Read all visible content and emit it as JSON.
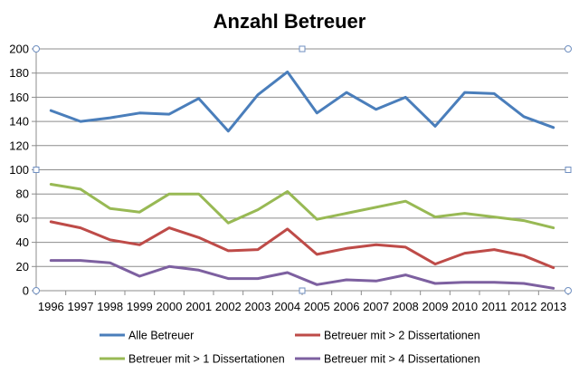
{
  "chart_data": {
    "type": "line",
    "title": "Anzahl Betreuer",
    "xlabel": "",
    "ylabel": "",
    "ylim": [
      0,
      200
    ],
    "yticks": [
      0,
      20,
      40,
      60,
      80,
      100,
      120,
      140,
      160,
      180,
      200
    ],
    "grid": true,
    "legend_position": "bottom",
    "categories": [
      "1996",
      "1997",
      "1998",
      "1999",
      "2000",
      "2001",
      "2002",
      "2003",
      "2004",
      "2005",
      "2006",
      "2007",
      "2008",
      "2009",
      "2010",
      "2011",
      "2012",
      "2013"
    ],
    "series": [
      {
        "name": "Alle Betreuer",
        "color": "#4a7ebb",
        "values": [
          149,
          140,
          143,
          147,
          146,
          159,
          132,
          162,
          181,
          147,
          164,
          150,
          160,
          136,
          164,
          163,
          144,
          135
        ]
      },
      {
        "name": "Betreuer mit > 2 Dissertationen",
        "color": "#be4b48",
        "values": [
          57,
          52,
          42,
          38,
          52,
          44,
          33,
          34,
          51,
          30,
          35,
          38,
          36,
          22,
          31,
          34,
          29,
          19
        ]
      },
      {
        "name": "Betreuer mit > 1 Dissertationen",
        "color": "#98b954",
        "values": [
          88,
          84,
          68,
          65,
          80,
          80,
          56,
          67,
          82,
          59,
          null,
          null,
          74,
          61,
          64,
          61,
          58,
          52
        ]
      },
      {
        "name": "Betreuer mit > 4 Dissertationen",
        "color": "#7d60a0",
        "values": [
          25,
          25,
          23,
          12,
          20,
          17,
          10,
          10,
          15,
          5,
          9,
          8,
          13,
          6,
          7,
          7,
          6,
          2
        ]
      }
    ]
  }
}
